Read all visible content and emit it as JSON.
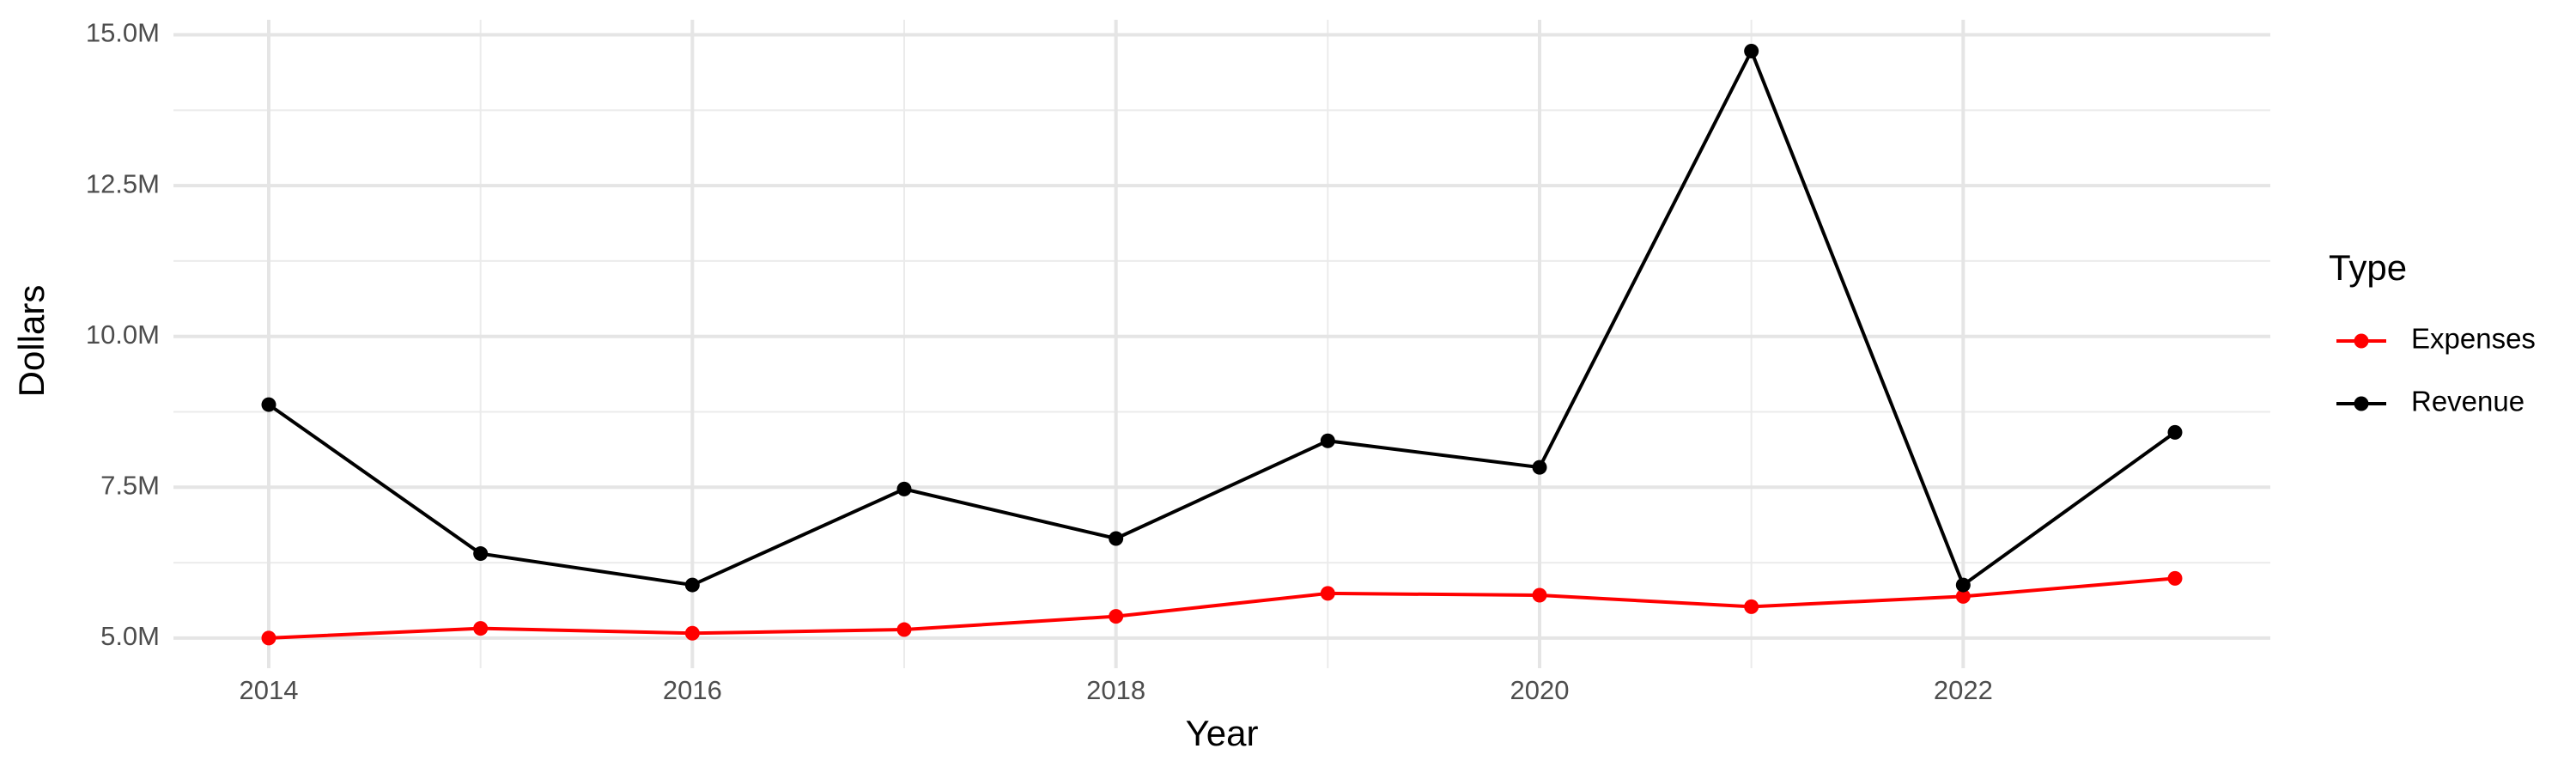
{
  "chart_data": {
    "type": "line",
    "x_label": "Year",
    "y_label": "Dollars",
    "legend_title": "Type",
    "legend_position": "right",
    "x": [
      2014,
      2015,
      2016,
      2017,
      2018,
      2019,
      2020,
      2021,
      2022,
      2023
    ],
    "series": [
      {
        "name": "Expenses",
        "color": "#ff0000",
        "values": [
          5000000,
          5160000,
          5080000,
          5140000,
          5360000,
          5740000,
          5710000,
          5520000,
          5690000,
          5990000
        ]
      },
      {
        "name": "Revenue",
        "color": "#000000",
        "values": [
          8870000,
          6400000,
          5880000,
          7470000,
          6650000,
          8270000,
          7830000,
          14730000,
          5880000,
          8410000
        ]
      }
    ],
    "xlim": [
      2013.55,
      2023.45
    ],
    "xticks": [
      2014,
      2016,
      2018,
      2020,
      2022
    ],
    "ylim": [
      4500000,
      15250000
    ],
    "yticks": [
      {
        "value": 5000000,
        "label": "5.0M"
      },
      {
        "value": 7500000,
        "label": "7.5M"
      },
      {
        "value": 10000000,
        "label": "10.0M"
      },
      {
        "value": 12500000,
        "label": "12.5M"
      },
      {
        "value": 15000000,
        "label": "15.0M"
      }
    ],
    "grid": true
  }
}
